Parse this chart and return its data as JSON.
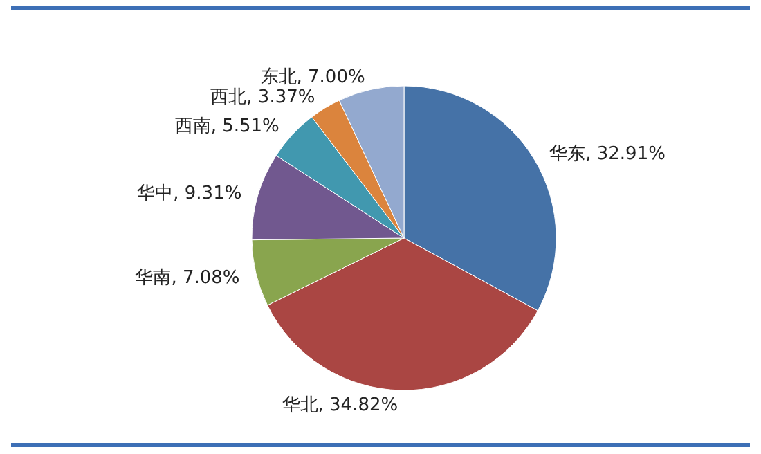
{
  "chart_data": {
    "type": "pie",
    "categories": [
      "华东",
      "华北",
      "华南",
      "华中",
      "西南",
      "西北",
      "东北"
    ],
    "values": [
      32.91,
      34.82,
      7.08,
      9.31,
      5.51,
      3.37,
      7.0
    ],
    "value_labels": [
      "32.91%",
      "34.82%",
      "7.08%",
      "9.31%",
      "5.51%",
      "3.37%",
      "7.00%"
    ],
    "colors": [
      "#4572a7",
      "#aa4643",
      "#89a54e",
      "#71588f",
      "#4198af",
      "#db843d",
      "#93a9cf"
    ]
  }
}
